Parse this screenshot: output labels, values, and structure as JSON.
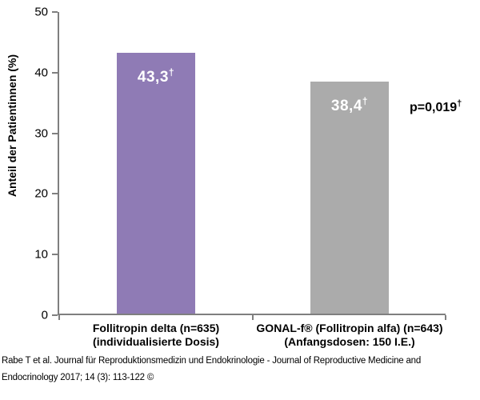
{
  "chart_data": {
    "type": "bar",
    "title": "",
    "ylabel": "Anteil der Patientinnen (%)",
    "xlabel": "",
    "ylim": [
      0,
      50
    ],
    "yticks": [
      0,
      10,
      20,
      30,
      40,
      50
    ],
    "grid": false,
    "legend": "none",
    "categories": [
      {
        "line1": "Follitropin delta (n=635)",
        "line2": "(individualisierte Dosis)"
      },
      {
        "line1": "GONAL-f® (Follitropin alfa) (n=643)",
        "line2": "(Anfangsdosen: 150 I.E.)"
      }
    ],
    "values": [
      43.3,
      38.4
    ],
    "value_labels": [
      {
        "text": "43,3",
        "sup": "†"
      },
      {
        "text": "38,4",
        "sup": "†"
      }
    ],
    "bar_colors": [
      "#8f7bb5",
      "#ababab"
    ],
    "value_label_color": "#ffffff",
    "axis_color": "#7f7f7f",
    "annotation": {
      "text": "p=0,019",
      "sup": "†"
    }
  },
  "footer": {
    "line1": "Rabe T et al. Journal für Reproduktionsmedizin und Endokrinologie - Journal of Reproductive Medicine and",
    "line2": "Endocrinology 2017; 14 (3): 113-122 ©"
  }
}
